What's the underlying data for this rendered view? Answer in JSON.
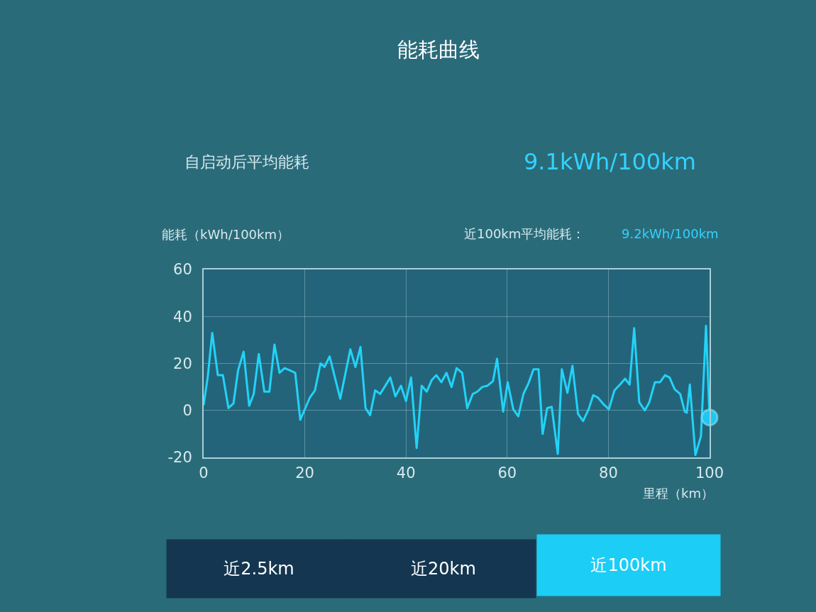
{
  "chart_data": {
    "type": "line",
    "title": "能耗曲线",
    "xlabel": "里程（km）",
    "ylabel": "能耗（kWh/100km）",
    "x": [
      0,
      0.8,
      1.7,
      2.8,
      3.8,
      4.9,
      5.9,
      6.8,
      7.9,
      9.0,
      9.9,
      10.9,
      12.0,
      13.0,
      14.0,
      15.0,
      16.0,
      17.1,
      18.1,
      19.1,
      21.0,
      22.0,
      23.1,
      23.9,
      24.9,
      27.0,
      29.0,
      30.0,
      31.0,
      32.0,
      32.9,
      33.9,
      34.9,
      36.9,
      37.9,
      39.0,
      40.0,
      41.0,
      42.1,
      43.1,
      44.1,
      45.1,
      46.0,
      47.0,
      48.0,
      49.0,
      50.0,
      51.1,
      52.1,
      53.2,
      54.1,
      55.1,
      56.1,
      57.2,
      58.0,
      59.2,
      60.1,
      61.2,
      62.2,
      63.2,
      64.2,
      65.2,
      66.2,
      67.0,
      67.9,
      68.8,
      70.0,
      70.8,
      71.9,
      72.9,
      74.0,
      75.0,
      76.1,
      77.0,
      77.9,
      79.1,
      80.1,
      81.2,
      82.3,
      83.3,
      84.2,
      85.1,
      86.1,
      87.2,
      88.1,
      89.2,
      90.2,
      91.2,
      92.1,
      93.1,
      94.2,
      95.1,
      95.5,
      96.1,
      97.2,
      98.3,
      99.3,
      100
    ],
    "series": [
      {
        "color": "#22d3f7",
        "values": [
          2.5,
          14,
          33,
          15,
          15,
          1,
          3,
          17,
          25,
          2,
          7,
          24,
          8,
          8,
          28,
          16,
          18,
          17,
          16,
          -4,
          5.5,
          8.5,
          20,
          18.5,
          23,
          5,
          26,
          18.5,
          27,
          1,
          -2,
          8.5,
          7,
          14,
          6,
          10.5,
          4,
          14,
          -16,
          10.5,
          8,
          13,
          15,
          12,
          16,
          10,
          18,
          16,
          1,
          7,
          8,
          10,
          10.5,
          12.5,
          22,
          -0.5,
          12,
          0.5,
          -2.5,
          7,
          11.5,
          17.5,
          17.5,
          -10,
          1,
          1.5,
          -18.5,
          17.5,
          7.5,
          19,
          -1.5,
          -4.5,
          0.5,
          6.5,
          5.5,
          2.5,
          0.5,
          8.5,
          11,
          13.5,
          11,
          35,
          3.5,
          0,
          3.5,
          12,
          12,
          15,
          14,
          9,
          7,
          -0.5,
          -1,
          11,
          -19,
          -11,
          36,
          -3
        ]
      },
      {
        "type": "scatter",
        "color": "#1fc6f0",
        "x": [
          100
        ],
        "values": [
          -3
        ]
      }
    ],
    "xlim": [
      0,
      100
    ],
    "xticks": [
      0,
      20,
      40,
      60,
      80,
      100
    ],
    "ylim": [
      -20,
      60
    ],
    "yticks": [
      -20,
      0,
      20,
      40,
      60
    ],
    "grid": true,
    "annotations": [
      "自启动后平均能耗",
      "9.1kWh/100km",
      "近100km平均能耗：",
      "9.2kWh/100km",
      "近2.5km",
      "近20km",
      "近100km"
    ]
  }
}
